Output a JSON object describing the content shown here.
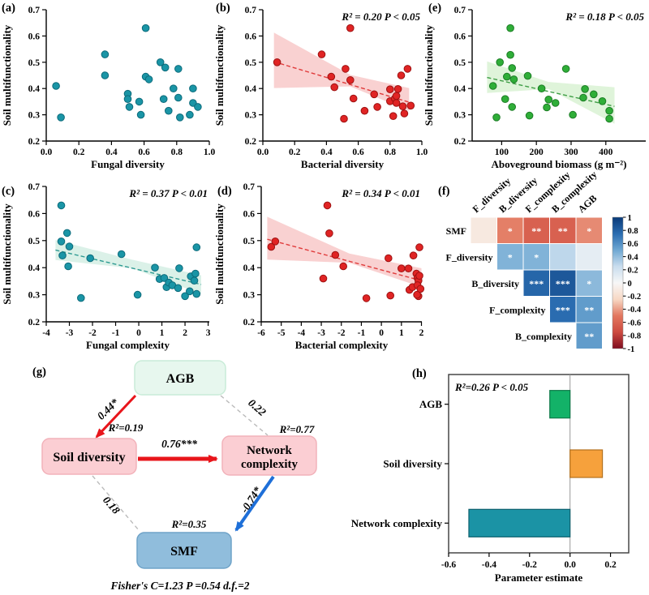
{
  "chart_data": [
    {
      "id": "a",
      "type": "scatter",
      "panel_label": "(a)",
      "xlabel": "Fungal diversity",
      "ylabel": "Soil multifunctionality",
      "stats": "",
      "xlim": [
        0,
        1
      ],
      "ylim": [
        0.2,
        0.7
      ],
      "xtick_vals": [
        0,
        0.2,
        0.4,
        0.6,
        0.8,
        1.0
      ],
      "xtick_labels": [
        "0.0",
        "0.2",
        "0.4",
        "0.6",
        "0.8",
        "1.0"
      ],
      "ytick_vals": [
        0.2,
        0.3,
        0.4,
        0.5,
        0.6,
        0.7
      ],
      "ytick_labels": [
        "0.2",
        "0.3",
        "0.4",
        "0.5",
        "0.6",
        "0.7"
      ],
      "point_color": "#1a95a6",
      "point_edge": "#0d6b7b",
      "points": [
        [
          0.06,
          0.41
        ],
        [
          0.09,
          0.29
        ],
        [
          0.36,
          0.53
        ],
        [
          0.36,
          0.45
        ],
        [
          0.5,
          0.38
        ],
        [
          0.5,
          0.36
        ],
        [
          0.51,
          0.33
        ],
        [
          0.57,
          0.35
        ],
        [
          0.58,
          0.3
        ],
        [
          0.61,
          0.63
        ],
        [
          0.61,
          0.445
        ],
        [
          0.63,
          0.435
        ],
        [
          0.7,
          0.5
        ],
        [
          0.73,
          0.48
        ],
        [
          0.72,
          0.36
        ],
        [
          0.75,
          0.315
        ],
        [
          0.78,
          0.4
        ],
        [
          0.81,
          0.475
        ],
        [
          0.81,
          0.365
        ],
        [
          0.82,
          0.29
        ],
        [
          0.88,
          0.3
        ],
        [
          0.9,
          0.4
        ],
        [
          0.9,
          0.345
        ],
        [
          0.93,
          0.33
        ]
      ]
    },
    {
      "id": "b",
      "type": "scatter",
      "panel_label": "(b)",
      "xlabel": "Bacterial diversity",
      "ylabel": "Soil multifunctionality",
      "stats": "R² = 0.20 P < 0.05",
      "xlim": [
        0,
        1
      ],
      "ylim": [
        0.2,
        0.7
      ],
      "xtick_vals": [
        0,
        0.2,
        0.4,
        0.6,
        0.8,
        1.0
      ],
      "xtick_labels": [
        "0.0",
        "0.2",
        "0.4",
        "0.6",
        "0.8",
        "1.0"
      ],
      "ytick_vals": [
        0.2,
        0.3,
        0.4,
        0.5,
        0.6,
        0.7
      ],
      "ytick_labels": [
        "0.2",
        "0.3",
        "0.4",
        "0.5",
        "0.6",
        "0.7"
      ],
      "point_color": "#e02424",
      "point_edge": "#9d1212",
      "line_color": "#e03c3c",
      "band_color": "#f8c9c9",
      "line": {
        "x": [
          0.07,
          0.92
        ],
        "y": [
          0.502,
          0.348
        ]
      },
      "band": {
        "x": [
          0.07,
          0.55,
          0.92
        ],
        "upper": [
          0.613,
          0.452,
          0.402
        ],
        "lower": [
          0.402,
          0.408,
          0.315
        ]
      },
      "points": [
        [
          0.09,
          0.5
        ],
        [
          0.37,
          0.53
        ],
        [
          0.43,
          0.445
        ],
        [
          0.45,
          0.405
        ],
        [
          0.51,
          0.285
        ],
        [
          0.52,
          0.475
        ],
        [
          0.55,
          0.63
        ],
        [
          0.55,
          0.432
        ],
        [
          0.57,
          0.362
        ],
        [
          0.64,
          0.315
        ],
        [
          0.7,
          0.378
        ],
        [
          0.72,
          0.33
        ],
        [
          0.8,
          0.397
        ],
        [
          0.8,
          0.352
        ],
        [
          0.82,
          0.295
        ],
        [
          0.83,
          0.362
        ],
        [
          0.84,
          0.345
        ],
        [
          0.85,
          0.398
        ],
        [
          0.84,
          0.372
        ],
        [
          0.87,
          0.45
        ],
        [
          0.88,
          0.332
        ],
        [
          0.89,
          0.305
        ],
        [
          0.91,
          0.475
        ],
        [
          0.93,
          0.335
        ]
      ]
    },
    {
      "id": "e",
      "type": "scatter",
      "panel_label": "(e)",
      "xlabel": "Aboveground biomass (g m⁻²)",
      "ylabel": "Soil multifunctionality",
      "stats": "R² = 0.18 P < 0.05",
      "xlim": [
        15,
        515
      ],
      "ylim": [
        0.2,
        0.7
      ],
      "xtick_vals": [
        100,
        200,
        300,
        400
      ],
      "xtick_labels": [
        "100",
        "200",
        "300",
        "400"
      ],
      "ytick_vals": [
        0.2,
        0.3,
        0.4,
        0.5,
        0.6,
        0.7
      ],
      "ytick_labels": [
        "0.2",
        "0.3",
        "0.4",
        "0.5",
        "0.6",
        "0.7"
      ],
      "point_color": "#2fae38",
      "point_edge": "#1d7d26",
      "line_color": "#3f9e46",
      "band_color": "#d9f2d4",
      "line": {
        "x": [
          58,
          425
        ],
        "y": [
          0.442,
          0.332
        ]
      },
      "band": {
        "x": [
          58,
          235,
          425
        ],
        "upper": [
          0.503,
          0.425,
          0.405
        ],
        "lower": [
          0.383,
          0.398,
          0.266
        ]
      },
      "points": [
        [
          75,
          0.41
        ],
        [
          85,
          0.29
        ],
        [
          95,
          0.5
        ],
        [
          110,
          0.36
        ],
        [
          115,
          0.445
        ],
        [
          125,
          0.63
        ],
        [
          125,
          0.528
        ],
        [
          130,
          0.478
        ],
        [
          135,
          0.435
        ],
        [
          130,
          0.33
        ],
        [
          175,
          0.448
        ],
        [
          180,
          0.297
        ],
        [
          215,
          0.4
        ],
        [
          230,
          0.328
        ],
        [
          235,
          0.358
        ],
        [
          255,
          0.345
        ],
        [
          285,
          0.475
        ],
        [
          305,
          0.3
        ],
        [
          335,
          0.365
        ],
        [
          340,
          0.398
        ],
        [
          365,
          0.378
        ],
        [
          390,
          0.352
        ],
        [
          410,
          0.315
        ],
        [
          410,
          0.285
        ]
      ]
    },
    {
      "id": "c",
      "type": "scatter",
      "panel_label": "(c)",
      "xlabel": "Fungal complexity",
      "ylabel": "Soil multifunctionality",
      "stats": "R² = 0.37 P < 0.01",
      "xlim": [
        -4,
        3.05
      ],
      "ylim": [
        0.2,
        0.7
      ],
      "xtick_vals": [
        -4,
        -3,
        -2,
        -1,
        0,
        1,
        2,
        3
      ],
      "xtick_labels": [
        "-4",
        "-3",
        "-2",
        "-1",
        "0",
        "1",
        "2",
        "3"
      ],
      "ytick_vals": [
        0.2,
        0.3,
        0.4,
        0.5,
        0.6,
        0.7
      ],
      "ytick_labels": [
        "0.2",
        "0.3",
        "0.4",
        "0.5",
        "0.6",
        "0.7"
      ],
      "point_color": "#1a95a6",
      "point_edge": "#0d6b7b",
      "line_color": "#2e9a92",
      "band_color": "#d5efe4",
      "line": {
        "x": [
          -3.6,
          2.7
        ],
        "y": [
          0.465,
          0.338
        ]
      },
      "band": {
        "x": [
          -3.6,
          -0.3,
          2.7
        ],
        "upper": [
          0.502,
          0.43,
          0.372
        ],
        "lower": [
          0.428,
          0.398,
          0.303
        ]
      },
      "points": [
        [
          -3.35,
          0.63
        ],
        [
          -3.35,
          0.497
        ],
        [
          -3.1,
          0.528
        ],
        [
          -3.0,
          0.478
        ],
        [
          -3.3,
          0.445
        ],
        [
          -3.05,
          0.405
        ],
        [
          -2.5,
          0.288
        ],
        [
          -2.1,
          0.435
        ],
        [
          -0.75,
          0.45
        ],
        [
          -0.05,
          0.3
        ],
        [
          0.7,
          0.4
        ],
        [
          0.9,
          0.358
        ],
        [
          1.1,
          0.362
        ],
        [
          1.2,
          0.328
        ],
        [
          1.3,
          0.345
        ],
        [
          1.45,
          0.335
        ],
        [
          1.7,
          0.325
        ],
        [
          1.75,
          0.398
        ],
        [
          2.0,
          0.295
        ],
        [
          2.2,
          0.313
        ],
        [
          2.25,
          0.368
        ],
        [
          2.4,
          0.352
        ],
        [
          2.45,
          0.378
        ],
        [
          2.5,
          0.475
        ],
        [
          2.5,
          0.303
        ]
      ]
    },
    {
      "id": "d",
      "type": "scatter",
      "panel_label": "(d)",
      "xlabel": "Bacterial complexity",
      "ylabel": "Soil multifunctionality",
      "stats": "R² = 0.34 P < 0.01",
      "xlim": [
        -6,
        2.02
      ],
      "ylim": [
        0.2,
        0.7
      ],
      "xtick_vals": [
        -6,
        -5,
        -4,
        -3,
        -2,
        -1,
        0,
        1,
        2
      ],
      "xtick_labels": [
        "-6",
        "-5",
        "-4",
        "-3",
        "-2",
        "-1",
        "0",
        "1",
        "2"
      ],
      "ytick_vals": [
        0.2,
        0.3,
        0.4,
        0.5,
        0.6,
        0.7
      ],
      "ytick_labels": [
        "0.2",
        "0.3",
        "0.4",
        "0.5",
        "0.6",
        "0.7"
      ],
      "point_color": "#e02424",
      "point_edge": "#9d1212",
      "line_color": "#e03c3c",
      "band_color": "#f8c9c9",
      "line": {
        "x": [
          -5.7,
          2.0
        ],
        "y": [
          0.505,
          0.352
        ]
      },
      "band": {
        "x": [
          -5.7,
          -1.6,
          2.0
        ],
        "upper": [
          0.588,
          0.452,
          0.398
        ],
        "lower": [
          0.43,
          0.418,
          0.328
        ]
      },
      "points": [
        [
          -5.5,
          0.477
        ],
        [
          -5.3,
          0.497
        ],
        [
          -2.9,
          0.36
        ],
        [
          -2.7,
          0.63
        ],
        [
          -2.6,
          0.527
        ],
        [
          -2.3,
          0.447
        ],
        [
          -1.9,
          0.405
        ],
        [
          -0.75,
          0.287
        ],
        [
          0.35,
          0.435
        ],
        [
          0.45,
          0.297
        ],
        [
          1.0,
          0.397
        ],
        [
          1.35,
          0.397
        ],
        [
          1.4,
          0.318
        ],
        [
          1.55,
          0.328
        ],
        [
          1.6,
          0.445
        ],
        [
          1.75,
          0.378
        ],
        [
          1.8,
          0.362
        ],
        [
          1.85,
          0.352
        ],
        [
          1.8,
          0.335
        ],
        [
          1.9,
          0.475
        ],
        [
          1.85,
          0.295
        ],
        [
          1.78,
          0.3
        ],
        [
          1.95,
          0.322
        ],
        [
          1.9,
          0.37
        ]
      ]
    },
    {
      "id": "f",
      "type": "heatmap",
      "panel_label": "(f)",
      "rows": [
        "SMF",
        "F_diversity",
        "B_diversity",
        "F_complexity",
        "B_complexity"
      ],
      "cols": [
        "F_diversity",
        "B_diversity",
        "F_complexity",
        "B_complexity",
        "AGB"
      ],
      "cells": [
        {
          "r": 0,
          "c": 0,
          "v": -0.1,
          "s": ""
        },
        {
          "r": 0,
          "c": 1,
          "v": -0.48,
          "s": "*"
        },
        {
          "r": 0,
          "c": 2,
          "v": -0.62,
          "s": "**"
        },
        {
          "r": 0,
          "c": 3,
          "v": -0.62,
          "s": "**"
        },
        {
          "r": 0,
          "c": 4,
          "v": -0.45,
          "s": "*"
        },
        {
          "r": 1,
          "c": 1,
          "v": 0.45,
          "s": "*"
        },
        {
          "r": 1,
          "c": 2,
          "v": 0.45,
          "s": "*"
        },
        {
          "r": 1,
          "c": 3,
          "v": 0.28,
          "s": ""
        },
        {
          "r": 1,
          "c": 4,
          "v": 0.1,
          "s": ""
        },
        {
          "r": 2,
          "c": 2,
          "v": 0.78,
          "s": "***"
        },
        {
          "r": 2,
          "c": 3,
          "v": 0.85,
          "s": "***"
        },
        {
          "r": 2,
          "c": 4,
          "v": 0.42,
          "s": "*"
        },
        {
          "r": 3,
          "c": 3,
          "v": 0.75,
          "s": "***"
        },
        {
          "r": 3,
          "c": 4,
          "v": 0.55,
          "s": "**"
        },
        {
          "r": 4,
          "c": 4,
          "v": 0.55,
          "s": "**"
        }
      ],
      "colorbar_ticks": [
        "1",
        "0.8",
        "0.6",
        "0.4",
        "0.2",
        "0",
        "-0.2",
        "-0.4",
        "-0.6",
        "-0.8",
        "-1"
      ]
    },
    {
      "id": "g",
      "type": "diagram",
      "panel_label": "(g)",
      "nodes": [
        {
          "id": "agb",
          "label": "AGB",
          "fill": "#e7f7ee",
          "stroke": "#c9ecd8",
          "r2": ""
        },
        {
          "id": "soil",
          "label": "Soil diversity",
          "fill": "#fbced3",
          "stroke": "#f2b2ba",
          "r2": "R²=0.19"
        },
        {
          "id": "net",
          "label": "Network complexity",
          "label_lines": [
            "Network",
            "complexity"
          ],
          "fill": "#fbced3",
          "stroke": "#f2b2ba",
          "r2": "R²=0.77"
        },
        {
          "id": "smf",
          "label": "SMF",
          "fill": "#90bddc",
          "stroke": "#6fa3c8",
          "r2": "R²=0.35"
        }
      ],
      "edges": [
        {
          "from": "agb",
          "to": "soil",
          "label": "0.44*",
          "color": "#e8151b",
          "style": "solid",
          "width": 3
        },
        {
          "from": "agb",
          "to": "net",
          "label": "0.22",
          "color": "#bbbbbb",
          "style": "dashed",
          "width": 1.4
        },
        {
          "from": "soil",
          "to": "net",
          "label": "0.76***",
          "color": "#e8151b",
          "style": "solid",
          "width": 5
        },
        {
          "from": "net",
          "to": "smf",
          "label": "-0.74*",
          "color": "#1e6fd8",
          "style": "solid",
          "width": 4
        },
        {
          "from": "soil",
          "to": "smf",
          "label": "0.18",
          "color": "#bbbbbb",
          "style": "dashed",
          "width": 1.4
        }
      ],
      "footer": "Fisher's C=1.23 P =0.54 d.f.=2"
    },
    {
      "id": "h",
      "type": "bar",
      "panel_label": "(h)",
      "orientation": "horizontal",
      "stats": "R²=0.26 P < 0.05",
      "xlabel": "Parameter estimate",
      "categories": [
        "AGB",
        "Soil diversity",
        "Network complexity"
      ],
      "values": [
        -0.1,
        0.16,
        -0.5
      ],
      "colors": [
        "#13b268",
        "#f6a13c",
        "#1b93a5"
      ],
      "edge_colors": [
        "#0e7a49",
        "#b4711f",
        "#10616f"
      ],
      "xlim": [
        -0.6,
        0.29
      ],
      "xtick_vals": [
        -0.6,
        -0.4,
        -0.2,
        0,
        0.2
      ],
      "xtick_labels": [
        "-0.6",
        "-0.4",
        "-0.2",
        "0.0",
        "0.2"
      ]
    }
  ]
}
